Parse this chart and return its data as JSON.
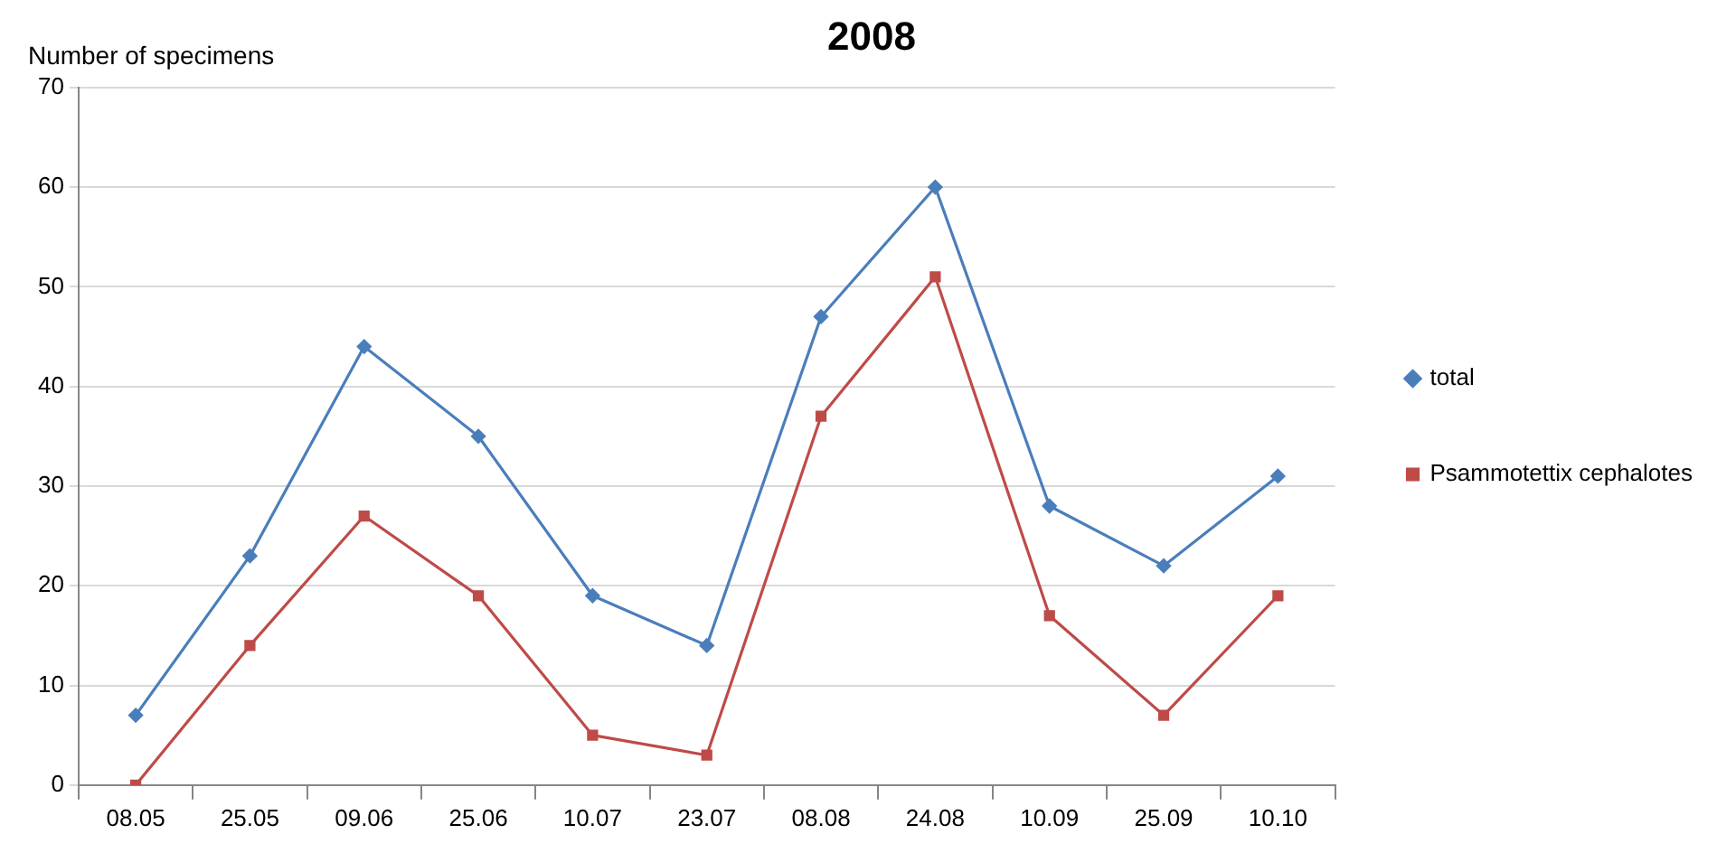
{
  "chart_data": {
    "type": "line",
    "title": "2008",
    "ylabel": "Number of specimens",
    "categories": [
      "08.05",
      "25.05",
      "09.06",
      "25.06",
      "10.07",
      "23.07",
      "08.08",
      "24.08",
      "10.09",
      "25.09",
      "10.10"
    ],
    "series": [
      {
        "name": "total",
        "color": "#4a7ebb",
        "marker": "diamond",
        "values": [
          7,
          23,
          44,
          35,
          19,
          14,
          47,
          60,
          28,
          22,
          31
        ]
      },
      {
        "name": "Psammotettix cephalotes",
        "color": "#be4b48",
        "marker": "square",
        "values": [
          0,
          14,
          27,
          19,
          5,
          3,
          37,
          51,
          17,
          7,
          19
        ]
      }
    ],
    "ylim": [
      0,
      70
    ],
    "yticks": [
      0,
      10,
      20,
      30,
      40,
      50,
      60,
      70
    ],
    "grid": "y",
    "legend": "right",
    "line_style": "solid"
  }
}
